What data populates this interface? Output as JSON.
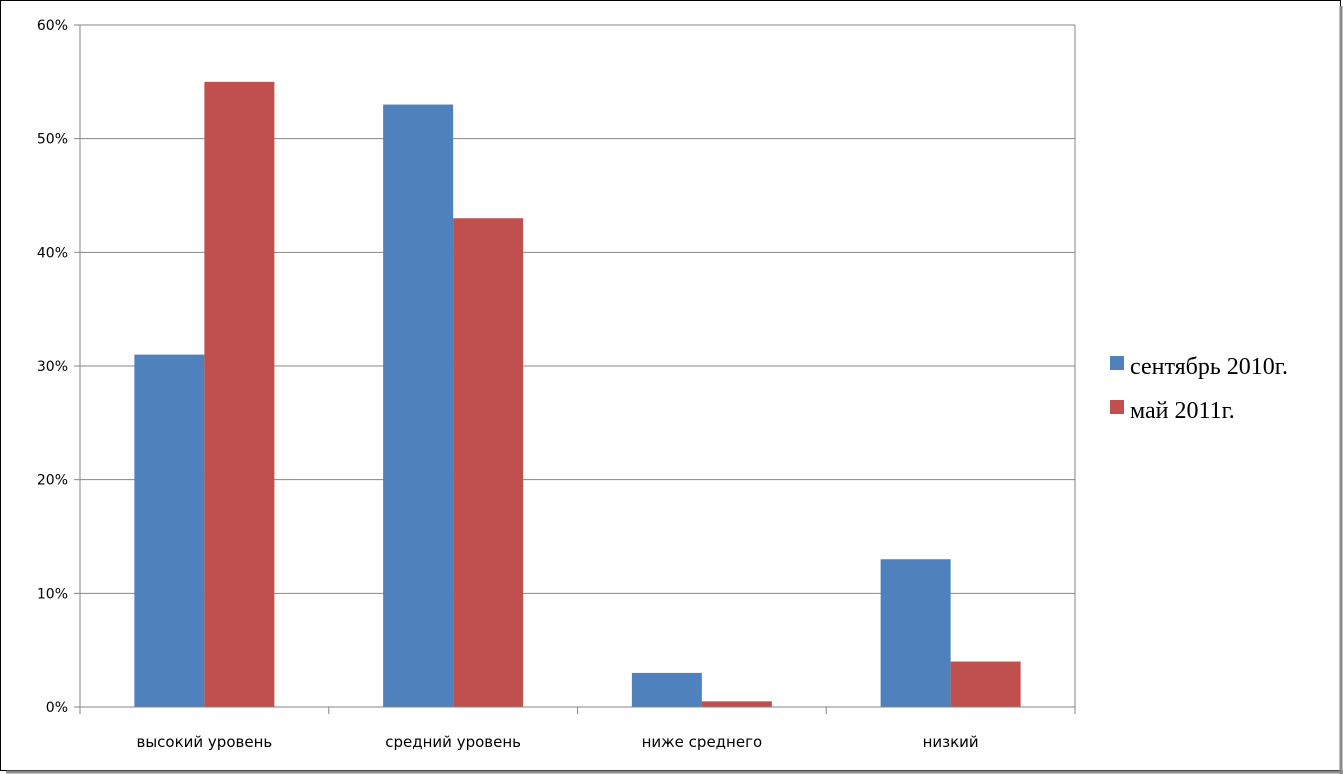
{
  "chart_data": {
    "type": "bar",
    "title": "",
    "xlabel": "",
    "ylabel": "",
    "ylim": [
      0,
      60
    ],
    "ytick_step": 10,
    "ytick_suffix": "%",
    "grid": true,
    "legend_placement": "right",
    "categories": [
      "высокий уровень",
      "средний уровень",
      "ниже среднего",
      "низкий"
    ],
    "series": [
      {
        "name": "сентябрь 2010г.",
        "color": "#4F81BD",
        "values": [
          31,
          53,
          3,
          13
        ]
      },
      {
        "name": "май 2011г.",
        "color": "#C0504D",
        "values": [
          55,
          43,
          0.5,
          4
        ]
      }
    ]
  }
}
